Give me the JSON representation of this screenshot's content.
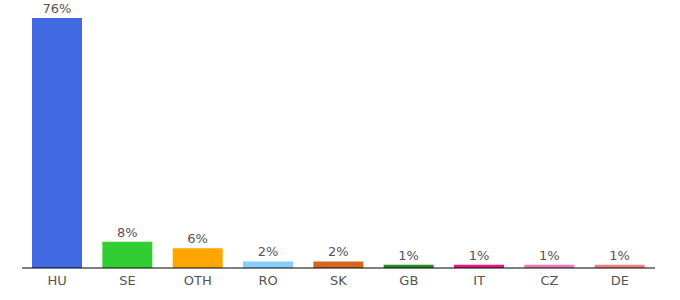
{
  "chart_data": {
    "type": "bar",
    "categories": [
      "HU",
      "SE",
      "OTH",
      "RO",
      "SK",
      "GB",
      "IT",
      "CZ",
      "DE"
    ],
    "values": [
      76,
      8,
      6,
      2,
      2,
      1,
      1,
      1,
      1
    ],
    "value_labels": [
      "76%",
      "8%",
      "6%",
      "2%",
      "2%",
      "1%",
      "1%",
      "1%",
      "1%"
    ],
    "colors": [
      "#4169e1",
      "#32cd32",
      "#ffa500",
      "#87cefa",
      "#d2691e",
      "#228b22",
      "#e6197f",
      "#f07ab8",
      "#f08080"
    ],
    "ylim": [
      0,
      76
    ],
    "data_labels": true,
    "tick_labels": "x",
    "grid": false
  }
}
